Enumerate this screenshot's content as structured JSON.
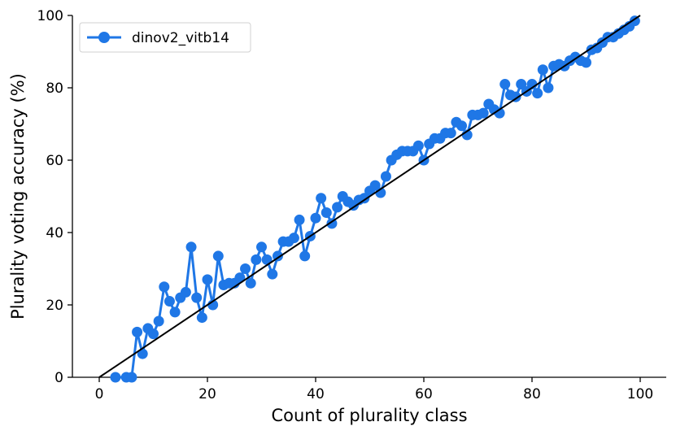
{
  "chart_data": {
    "type": "line",
    "title": "",
    "xlabel": "Count of plurality class",
    "ylabel": "Plurality voting accuracy (%)",
    "xlim": [
      -5,
      100
    ],
    "ylim": [
      0,
      100
    ],
    "xticks": [
      0,
      20,
      40,
      60,
      80,
      100
    ],
    "yticks": [
      0,
      20,
      40,
      60,
      80,
      100
    ],
    "xtick_labels": [
      "0",
      "20",
      "40",
      "60",
      "80",
      "100"
    ],
    "ytick_labels": [
      "0",
      "20",
      "40",
      "60",
      "80",
      "100"
    ],
    "grid": false,
    "legend_position": "top-left",
    "series": [
      {
        "name": "dinov2_vitb14",
        "color": "#1f77e6",
        "marker": "circle",
        "x": [
          3,
          5,
          6,
          7,
          8,
          9,
          10,
          11,
          12,
          13,
          14,
          15,
          16,
          17,
          18,
          19,
          20,
          21,
          22,
          23,
          24,
          25,
          26,
          27,
          28,
          29,
          30,
          31,
          32,
          33,
          34,
          35,
          36,
          37,
          38,
          39,
          40,
          41,
          42,
          43,
          44,
          45,
          46,
          47,
          48,
          49,
          50,
          51,
          52,
          53,
          54,
          55,
          56,
          57,
          58,
          59,
          60,
          61,
          62,
          63,
          64,
          65,
          66,
          67,
          68,
          69,
          70,
          71,
          72,
          73,
          74,
          75,
          76,
          77,
          78,
          79,
          80,
          81,
          82,
          83,
          84,
          85,
          86,
          87,
          88,
          89,
          90,
          91,
          92,
          93,
          94,
          95,
          96,
          97,
          98,
          99
        ],
        "y": [
          0,
          0,
          0,
          12.5,
          6.5,
          13.5,
          12,
          15.5,
          25,
          21,
          18,
          22,
          23.5,
          36,
          22,
          16.5,
          27,
          20,
          33.5,
          25.5,
          26,
          26,
          27.5,
          30,
          26,
          32.5,
          36,
          32.5,
          28.5,
          33.5,
          37.5,
          37.5,
          38.5,
          43.5,
          33.5,
          39,
          44,
          49.5,
          45.5,
          42.5,
          47,
          50,
          48.5,
          47.5,
          49,
          49.5,
          51.5,
          53,
          51,
          55.5,
          60,
          61.5,
          62.5,
          62.5,
          62.5,
          64,
          60,
          64.5,
          66,
          66,
          67.5,
          67.5,
          70.5,
          69.5,
          67,
          72.5,
          72.5,
          73,
          75.5,
          74,
          73,
          81,
          78,
          77.5,
          81,
          79,
          81,
          78.5,
          85,
          80,
          86,
          86.5,
          86,
          87.5,
          88.5,
          87.5,
          87,
          90.5,
          91,
          92.5,
          94,
          94,
          95,
          96,
          97,
          98.5
        ]
      }
    ],
    "reference_line": {
      "x": [
        0,
        100
      ],
      "y": [
        0,
        100
      ],
      "color": "#000000"
    }
  }
}
